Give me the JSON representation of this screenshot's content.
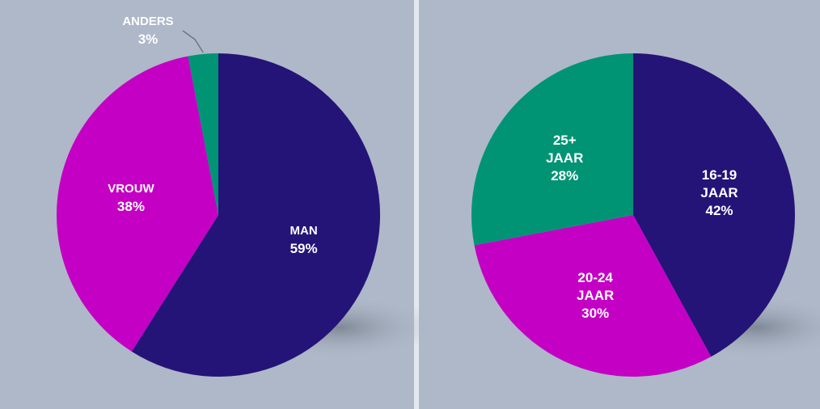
{
  "chart_data": [
    {
      "type": "pie",
      "categories": [
        "MAN",
        "VROUW",
        "ANDERS"
      ],
      "values": [
        59,
        38,
        3
      ],
      "value_labels": [
        "59%",
        "38%",
        "3%"
      ],
      "colors": [
        "#241478",
        "#c400c4",
        "#009474"
      ]
    },
    {
      "type": "pie",
      "categories": [
        "16-19 JAAR",
        "20-24 JAAR",
        "25+ JAAR"
      ],
      "values": [
        42,
        30,
        28
      ],
      "value_labels": [
        "42%",
        "30%",
        "28%"
      ],
      "colors": [
        "#241478",
        "#c400c4",
        "#009474"
      ]
    }
  ]
}
